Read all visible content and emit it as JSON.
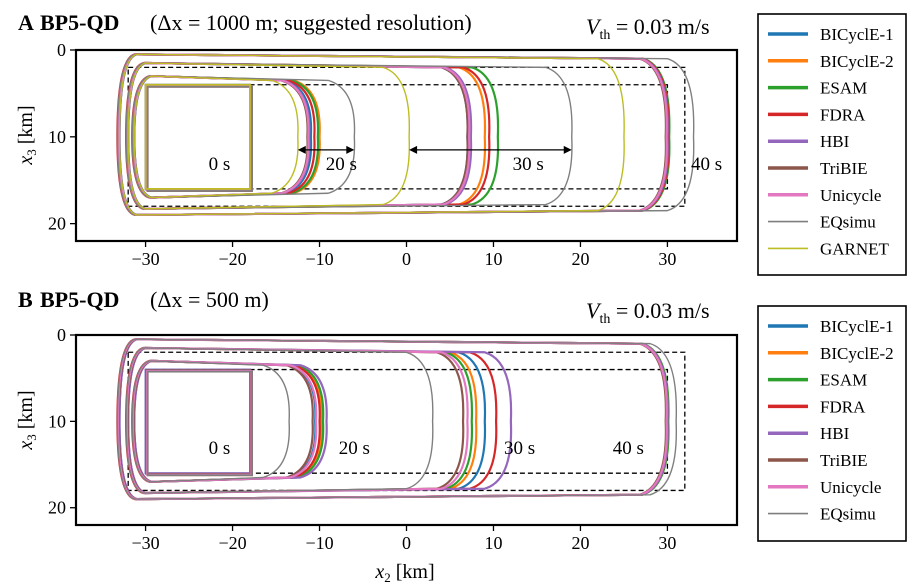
{
  "figure": {
    "xlabel_main": "x",
    "xlabel_sub": "2",
    "xlabel_unit": " [km]"
  },
  "chart_data": [
    {
      "type": "line",
      "panel_letter": "A",
      "title_bold": "BP5-QD",
      "title_rest": "(Δx = 1000 m; suggested resolution)",
      "threshold_main": "V",
      "threshold_sub": "th",
      "threshold_rest": " = 0.03 m/s",
      "ylabel_main": "x",
      "ylabel_sub": "3",
      "ylabel_unit": " [km]",
      "xlabel": "x2 [km]",
      "xlim": [
        -38,
        38
      ],
      "ylim": [
        22,
        0
      ],
      "xticks": [
        "−30",
        "−20",
        "−10",
        "0",
        "10",
        "20",
        "30"
      ],
      "xtick_values": [
        -30,
        -20,
        -10,
        0,
        10,
        20,
        30
      ],
      "yticks": [
        "0",
        "10",
        "20"
      ],
      "ytick_values": [
        0,
        10,
        20
      ],
      "grid": false,
      "legend_position": "right",
      "time_labels": [
        {
          "text": "0 s",
          "x": -21.5,
          "y": 13.8
        },
        {
          "text": "20 s",
          "x": -7.5,
          "y": 13.8
        },
        {
          "text": "30 s",
          "x": 14.0,
          "y": 13.8
        },
        {
          "text": "40 s",
          "x": 34.5,
          "y": 13.8
        }
      ],
      "arrows": [
        {
          "x1": -12.5,
          "x2": -6.0,
          "y": 11.5
        },
        {
          "x1": 0.3,
          "x2": 19.0,
          "y": 11.5
        }
      ],
      "dashed_boxes": [
        {
          "x0": -32,
          "x1": 32,
          "y0": 2,
          "y1": 18
        },
        {
          "x0": -30,
          "x1": 30,
          "y0": 4,
          "y1": 16
        }
      ],
      "series": [
        {
          "name": "BICyclE-1",
          "color": "#1f77b4",
          "fronts": [
            {
              "t": 20,
              "right": -11.0
            },
            {
              "t": 30,
              "right": 7.0
            },
            {
              "t": 40,
              "right": 30.0
            }
          ]
        },
        {
          "name": "BICyclE-2",
          "color": "#ff7f0e",
          "fronts": [
            {
              "t": 20,
              "right": -10.0
            },
            {
              "t": 30,
              "right": 9.0
            },
            {
              "t": 40,
              "right": 30.0
            }
          ]
        },
        {
          "name": "ESAM",
          "color": "#2ca02c",
          "fronts": [
            {
              "t": 20,
              "right": -10.2
            },
            {
              "t": 30,
              "right": 10.5
            },
            {
              "t": 40,
              "right": 30.2
            }
          ]
        },
        {
          "name": "FDRA",
          "color": "#d62728",
          "fronts": [
            {
              "t": 20,
              "right": -10.6
            },
            {
              "t": 30,
              "right": 9.5
            },
            {
              "t": 40,
              "right": 30.1
            }
          ]
        },
        {
          "name": "HBI",
          "color": "#9467bd",
          "fronts": [
            {
              "t": 20,
              "right": -11.2
            },
            {
              "t": 30,
              "right": 7.4
            },
            {
              "t": 40,
              "right": 30.0
            }
          ]
        },
        {
          "name": "TriBIE",
          "color": "#8c564b",
          "fronts": [
            {
              "t": 20,
              "right": -11.4
            },
            {
              "t": 30,
              "right": 7.0
            },
            {
              "t": 40,
              "right": 29.8
            }
          ]
        },
        {
          "name": "Unicycle",
          "color": "#e377c2",
          "fronts": [
            {
              "t": 20,
              "right": -11.3
            },
            {
              "t": 30,
              "right": 7.2
            },
            {
              "t": 40,
              "right": 29.9
            }
          ]
        },
        {
          "name": "EQsimu",
          "color": "#7f7f7f",
          "fronts": [
            {
              "t": 20,
              "right": -6.0
            },
            {
              "t": 30,
              "right": 19.0
            },
            {
              "t": 40,
              "right": 33.0
            }
          ]
        },
        {
          "name": "GARNET",
          "color": "#bcbd22",
          "fronts": [
            {
              "t": 20,
              "right": -12.5
            },
            {
              "t": 30,
              "right": 0.3
            },
            {
              "t": 40,
              "right": 25.0
            }
          ]
        }
      ]
    },
    {
      "type": "line",
      "panel_letter": "B",
      "title_bold": "BP5-QD",
      "title_rest": "(Δx = 500 m)",
      "threshold_main": "V",
      "threshold_sub": "th",
      "threshold_rest": " = 0.03 m/s",
      "ylabel_main": "x",
      "ylabel_sub": "3",
      "ylabel_unit": " [km]",
      "xlabel": "x2 [km]",
      "xlim": [
        -38,
        38
      ],
      "ylim": [
        22,
        0
      ],
      "xticks": [
        "−30",
        "−20",
        "−10",
        "0",
        "10",
        "20",
        "30"
      ],
      "xtick_values": [
        -30,
        -20,
        -10,
        0,
        10,
        20,
        30
      ],
      "yticks": [
        "0",
        "10",
        "20"
      ],
      "ytick_values": [
        0,
        10,
        20
      ],
      "grid": false,
      "legend_position": "right",
      "time_labels": [
        {
          "text": "0 s",
          "x": -21.5,
          "y": 13.8
        },
        {
          "text": "20 s",
          "x": -6.0,
          "y": 13.8
        },
        {
          "text": "30 s",
          "x": 13.0,
          "y": 13.8
        },
        {
          "text": "40 s",
          "x": 25.5,
          "y": 13.8
        }
      ],
      "arrows": [],
      "dashed_boxes": [
        {
          "x0": -32,
          "x1": 32,
          "y0": 2,
          "y1": 18
        },
        {
          "x0": -30,
          "x1": 30,
          "y0": 4,
          "y1": 16
        }
      ],
      "series": [
        {
          "name": "BICyclE-1",
          "color": "#1f77b4",
          "fronts": [
            {
              "t": 20,
              "right": -10.5
            },
            {
              "t": 30,
              "right": 9.0
            },
            {
              "t": 40,
              "right": 30.0
            }
          ]
        },
        {
          "name": "BICyclE-2",
          "color": "#ff7f0e",
          "fronts": [
            {
              "t": 20,
              "right": -9.8
            },
            {
              "t": 30,
              "right": 8.0
            },
            {
              "t": 40,
              "right": 30.0
            }
          ]
        },
        {
          "name": "ESAM",
          "color": "#2ca02c",
          "fronts": [
            {
              "t": 20,
              "right": -9.6
            },
            {
              "t": 30,
              "right": 7.5
            },
            {
              "t": 40,
              "right": 30.1
            }
          ]
        },
        {
          "name": "FDRA",
          "color": "#d62728",
          "fronts": [
            {
              "t": 20,
              "right": -10.0
            },
            {
              "t": 30,
              "right": 10.3
            },
            {
              "t": 40,
              "right": 30.0
            }
          ]
        },
        {
          "name": "HBI",
          "color": "#9467bd",
          "fronts": [
            {
              "t": 20,
              "right": -9.2
            },
            {
              "t": 30,
              "right": 12.0
            },
            {
              "t": 40,
              "right": 30.0
            }
          ]
        },
        {
          "name": "TriBIE",
          "color": "#8c564b",
          "fronts": [
            {
              "t": 20,
              "right": -10.8
            },
            {
              "t": 30,
              "right": 6.5
            },
            {
              "t": 40,
              "right": 29.8
            }
          ]
        },
        {
          "name": "Unicycle",
          "color": "#e377c2",
          "fronts": [
            {
              "t": 20,
              "right": -10.4
            },
            {
              "t": 30,
              "right": 7.0
            },
            {
              "t": 40,
              "right": 29.9
            }
          ]
        },
        {
          "name": "EQsimu",
          "color": "#7f7f7f",
          "fronts": [
            {
              "t": 20,
              "right": -13.5
            },
            {
              "t": 30,
              "right": 3.0
            },
            {
              "t": 40,
              "right": 31.0
            }
          ]
        }
      ]
    }
  ]
}
